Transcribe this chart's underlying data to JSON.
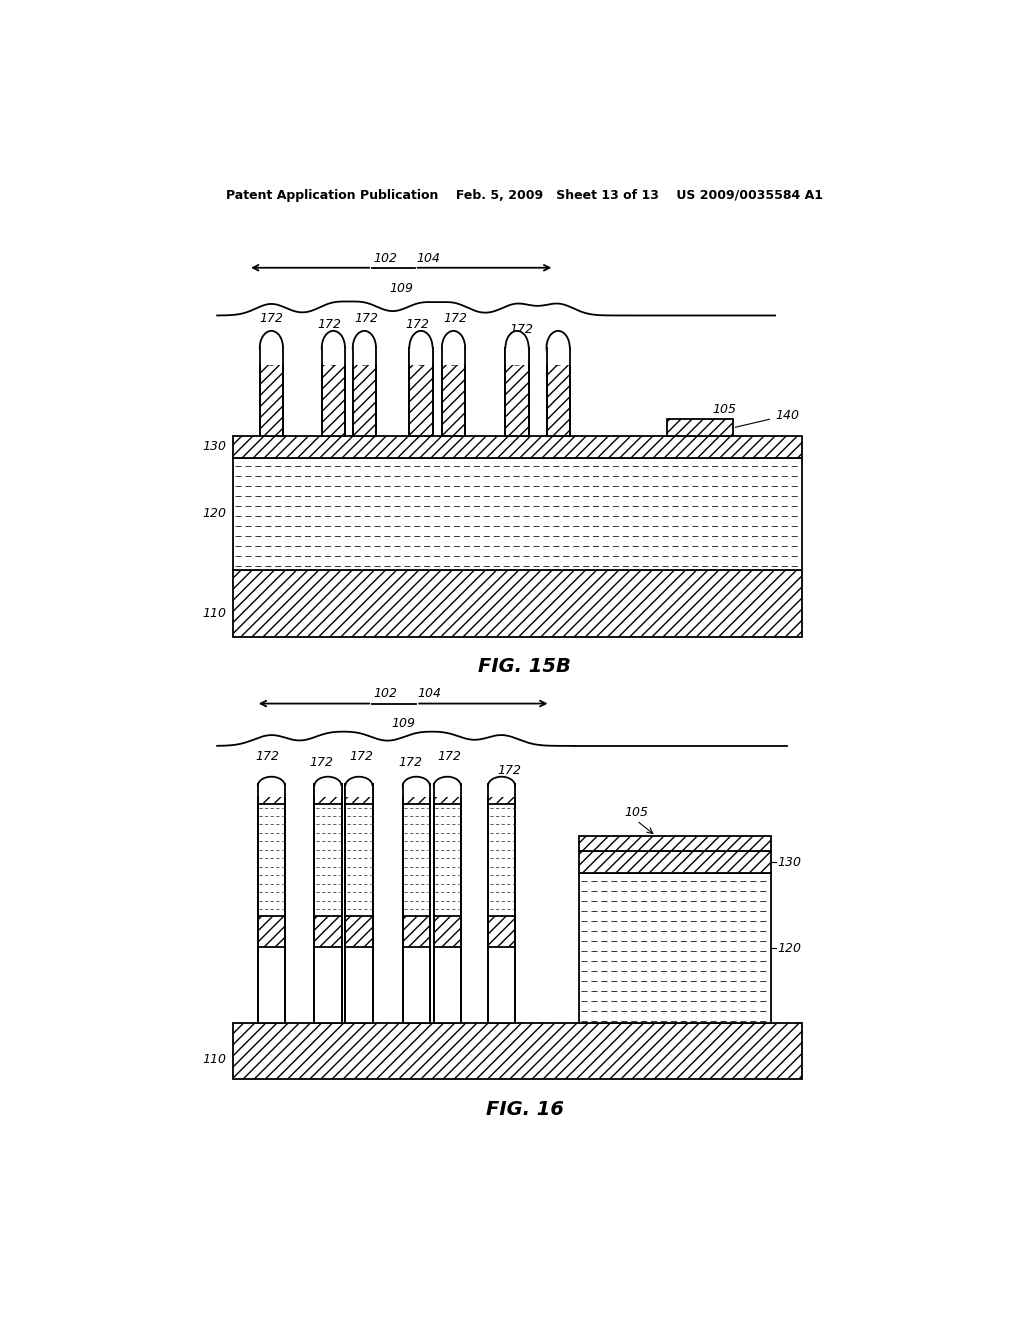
{
  "title_header": "Patent Application Publication    Feb. 5, 2009   Sheet 13 of 13    US 2009/0035584 A1",
  "fig15b_label": "FIG. 15B",
  "fig16_label": "FIG. 16",
  "bg_color": "#ffffff",
  "line_color": "#000000"
}
